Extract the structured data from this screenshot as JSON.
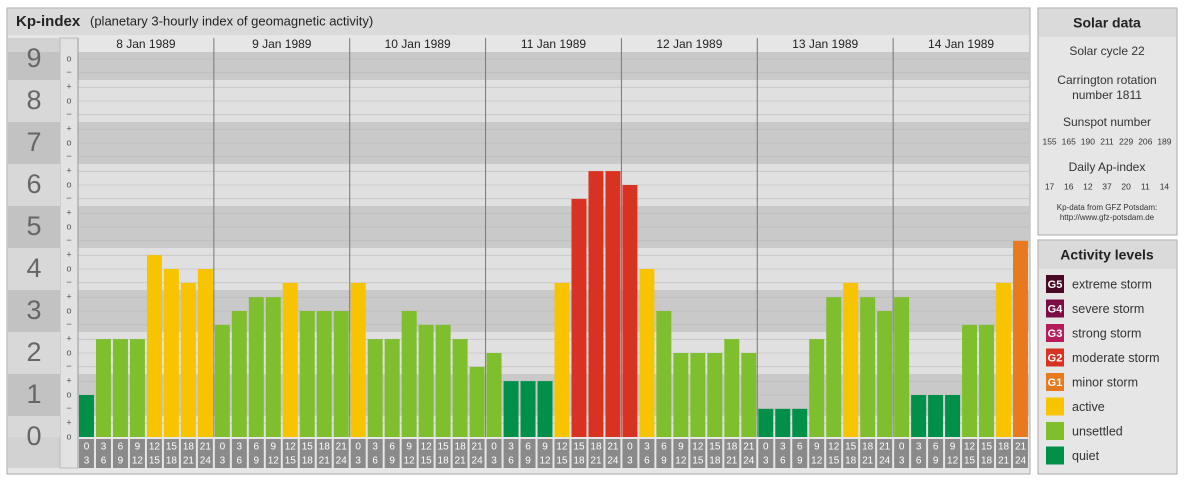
{
  "chart_data": {
    "type": "bar",
    "title": "Kp-index",
    "subtitle": "(planetary 3-hourly index of geomagnetic activity)",
    "days": [
      "8 Jan 1989",
      "9 Jan 1989",
      "10 Jan 1989",
      "11 Jan 1989",
      "12 Jan 1989",
      "13 Jan 1989",
      "14 Jan 1989"
    ],
    "hour_labels": [
      [
        "0",
        "3"
      ],
      [
        "3",
        "6"
      ],
      [
        "6",
        "9"
      ],
      [
        "9",
        "12"
      ],
      [
        "12",
        "15"
      ],
      [
        "15",
        "18"
      ],
      [
        "18",
        "21"
      ],
      [
        "21",
        "24"
      ]
    ],
    "values": [
      1,
      2.33,
      2.33,
      2.33,
      4.33,
      4,
      3.67,
      4,
      2.67,
      3,
      3.33,
      3.33,
      3.67,
      3,
      3,
      3,
      3.67,
      2.33,
      2.33,
      3,
      2.67,
      2.67,
      2.33,
      1.67,
      2,
      1.33,
      1.33,
      1.33,
      3.67,
      5.67,
      6.33,
      6.33,
      6,
      4,
      3,
      2,
      2,
      2,
      2.33,
      2,
      0.67,
      0.67,
      0.67,
      2.33,
      3.33,
      3.67,
      3.33,
      3,
      3.33,
      1,
      1,
      1,
      2.67,
      2.67,
      3.67,
      4.67
    ],
    "colors": [
      "#00904a",
      "#7fbf2e",
      "#7fbf2e",
      "#7fbf2e",
      "#f8c400",
      "#f8c400",
      "#f8c400",
      "#f8c400",
      "#7fbf2e",
      "#7fbf2e",
      "#7fbf2e",
      "#7fbf2e",
      "#f8c400",
      "#7fbf2e",
      "#7fbf2e",
      "#7fbf2e",
      "#f8c400",
      "#7fbf2e",
      "#7fbf2e",
      "#7fbf2e",
      "#7fbf2e",
      "#7fbf2e",
      "#7fbf2e",
      "#7fbf2e",
      "#7fbf2e",
      "#00904a",
      "#00904a",
      "#00904a",
      "#f8c400",
      "#d83222",
      "#d83222",
      "#d83222",
      "#d83222",
      "#f8c400",
      "#7fbf2e",
      "#7fbf2e",
      "#7fbf2e",
      "#7fbf2e",
      "#7fbf2e",
      "#7fbf2e",
      "#00904a",
      "#00904a",
      "#00904a",
      "#7fbf2e",
      "#7fbf2e",
      "#f8c400",
      "#7fbf2e",
      "#7fbf2e",
      "#7fbf2e",
      "#00904a",
      "#00904a",
      "#00904a",
      "#7fbf2e",
      "#7fbf2e",
      "#f8c400",
      "#e87a1e"
    ],
    "ylim": [
      0,
      9
    ],
    "yticks": [
      0,
      1,
      2,
      3,
      4,
      5,
      6,
      7,
      8,
      9
    ],
    "minor_ticks": [
      {
        "value": 0,
        "label": "o"
      },
      {
        "value": 0.33,
        "label": "+"
      },
      {
        "value": 0.67,
        "label": "−"
      },
      {
        "value": 1,
        "label": "o"
      },
      {
        "value": 1.33,
        "label": "+"
      },
      {
        "value": 1.67,
        "label": "−"
      },
      {
        "value": 2,
        "label": "o"
      },
      {
        "value": 2.33,
        "label": "+"
      },
      {
        "value": 2.67,
        "label": "−"
      },
      {
        "value": 3,
        "label": "o"
      },
      {
        "value": 3.33,
        "label": "+"
      },
      {
        "value": 3.67,
        "label": "−"
      },
      {
        "value": 4,
        "label": "o"
      },
      {
        "value": 4.33,
        "label": "+"
      },
      {
        "value": 4.67,
        "label": "−"
      },
      {
        "value": 5,
        "label": "o"
      },
      {
        "value": 5.33,
        "label": "+"
      },
      {
        "value": 5.67,
        "label": "−"
      },
      {
        "value": 6,
        "label": "o"
      },
      {
        "value": 6.33,
        "label": "+"
      },
      {
        "value": 6.67,
        "label": "−"
      },
      {
        "value": 7,
        "label": "o"
      },
      {
        "value": 7.33,
        "label": "+"
      },
      {
        "value": 7.67,
        "label": "−"
      },
      {
        "value": 8,
        "label": "o"
      },
      {
        "value": 8.33,
        "label": "+"
      },
      {
        "value": 8.67,
        "label": "−"
      },
      {
        "value": 9,
        "label": "o"
      }
    ],
    "grid": true
  },
  "solar_data": {
    "title": "Solar data",
    "solar_cycle": "Solar cycle 22",
    "carrington": [
      "Carrington rotation",
      "number 1811"
    ],
    "sunspot_title": "Sunspot number",
    "sunspot_numbers": [
      155,
      165,
      190,
      211,
      229,
      206,
      189
    ],
    "ap_title": "Daily Ap-index",
    "ap_index": [
      17,
      16,
      12,
      37,
      20,
      11,
      14
    ],
    "source": [
      "Kp-data from GFZ Potsdam:",
      "http://www.gfz-potsdam.de"
    ]
  },
  "activity_levels": {
    "title": "Activity levels",
    "items": [
      {
        "code": "G5",
        "name": "extreme storm",
        "color": "#4a0a26"
      },
      {
        "code": "G4",
        "name": "severe storm",
        "color": "#7c0c44"
      },
      {
        "code": "G3",
        "name": "strong storm",
        "color": "#b41c5c"
      },
      {
        "code": "G2",
        "name": "moderate storm",
        "color": "#d83222"
      },
      {
        "code": "G1",
        "name": "minor storm",
        "color": "#e87a1e"
      },
      {
        "name": "active",
        "color": "#f8c400"
      },
      {
        "name": "unsettled",
        "color": "#7fbf2e"
      },
      {
        "name": "quiet",
        "color": "#00904a"
      }
    ]
  }
}
